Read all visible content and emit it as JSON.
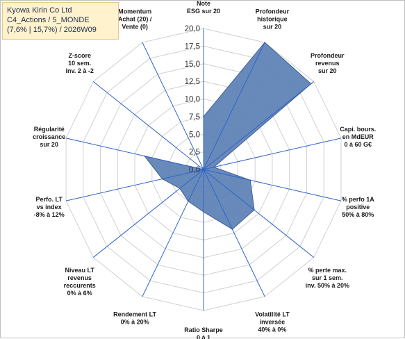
{
  "title_box": {
    "line1": "Kyowa Kirin Co Ltd",
    "line2": "C4_Actions / 5_MONDE",
    "line3": "(7,6% | 15,7%) / 2026W09"
  },
  "colors": {
    "fill": "#5b80b5",
    "stroke": "#3f5f93",
    "grid": "#d0d0d0",
    "spoke": "#2f64c8",
    "title_bg": "#fff2cc"
  },
  "chart_data": {
    "type": "radar",
    "rmin": 0,
    "rmax": 20,
    "tick_step": 2.5,
    "tick_labels": [
      "0,0",
      "2,5",
      "5,0",
      "7,5",
      "10,0",
      "12,5",
      "15,0",
      "17,5",
      "20,0"
    ],
    "axes": [
      {
        "label": [
          "Note",
          "ESG sur 20"
        ],
        "value": 7.5
      },
      {
        "label": [
          "Profondeur",
          "historique",
          "sur 20"
        ],
        "value": 20
      },
      {
        "label": [
          "Profondeur",
          "revenus",
          "sur 20"
        ],
        "value": 19.5
      },
      {
        "label": [
          "Capi. bours.",
          "en MdEUR",
          "0 à 60 G€"
        ],
        "value": 1.5
      },
      {
        "label": [
          "% perfo 1A",
          "positive",
          "50% à 80%"
        ],
        "value": 6.8
      },
      {
        "label": [
          "% perte max.",
          "sur 1 sem.",
          "inv. 50% à 20%"
        ],
        "value": 9.2
      },
      {
        "label": [
          "Volatilité LT",
          "inversée",
          "40% à 0%"
        ],
        "value": 9.4
      },
      {
        "label": [
          "Ratio Sharpe",
          "0 à 1"
        ],
        "value": 6.0
      },
      {
        "label": [
          "Rendement LT",
          "0% à 20%"
        ],
        "value": 5.0
      },
      {
        "label": [
          "Niveau LT",
          "revenus",
          "reccurents",
          "0% à 6%"
        ],
        "value": 4.3
      },
      {
        "label": [
          "Perfo. LT",
          "vs index",
          "-8% à 12%"
        ],
        "value": 6.0
      },
      {
        "label": [
          "Régularité",
          "croissance",
          "sur 20"
        ],
        "value": 8.6
      },
      {
        "label": [
          "Z-score",
          "10 sem.",
          "inv. 2 à -2"
        ],
        "value": 0
      },
      {
        "label": [
          "Momentum",
          "Achat (20) /",
          "Vente (0)"
        ],
        "value": 0
      }
    ]
  }
}
